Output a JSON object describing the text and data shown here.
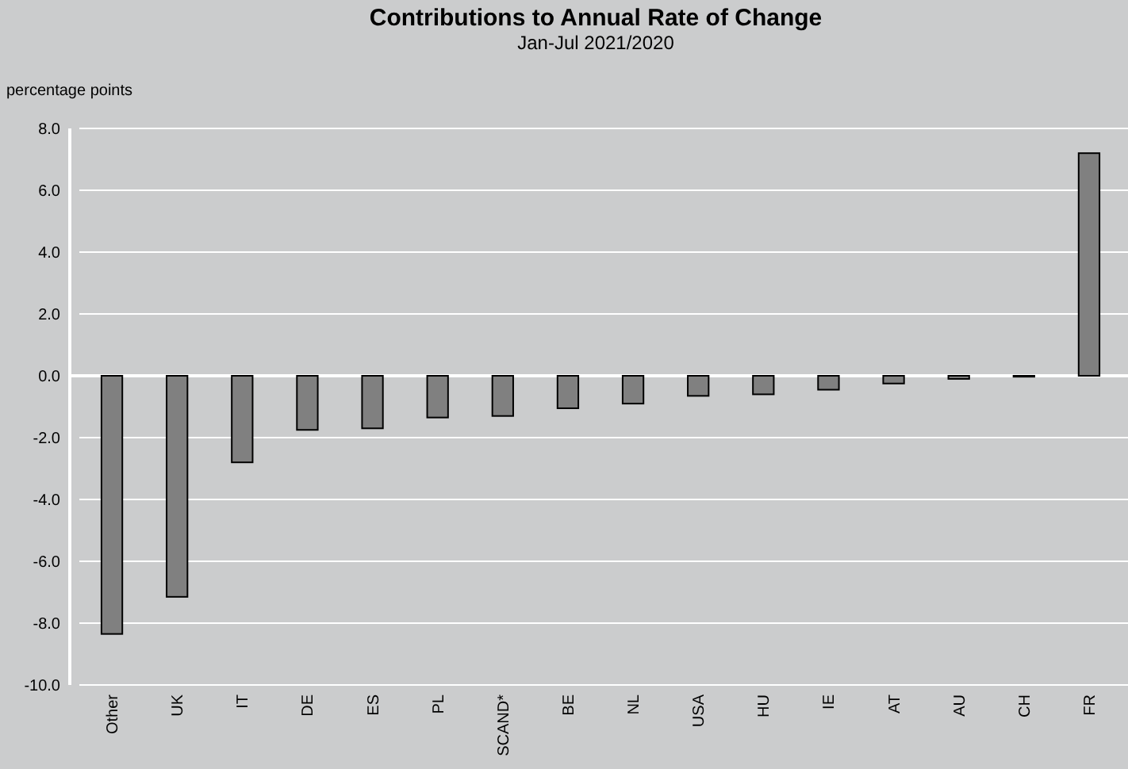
{
  "chart_data": {
    "type": "bar",
    "title": "Contributions to Annual Rate of Change",
    "subtitle": "Jan-Jul 2021/2020",
    "ylabel": "percentage points",
    "categories": [
      "Other",
      "UK",
      "IT",
      "DE",
      "ES",
      "PL",
      "SCAND*",
      "BE",
      "NL",
      "USA",
      "HU",
      "IE",
      "AT",
      "AU",
      "CH",
      "FR"
    ],
    "values": [
      -8.35,
      -7.15,
      -2.8,
      -1.75,
      -1.7,
      -1.35,
      -1.3,
      -1.05,
      -0.9,
      -0.65,
      -0.6,
      -0.45,
      -0.25,
      -0.1,
      -0.03,
      7.2
    ],
    "color": "#808080",
    "ylim": [
      -10,
      8
    ],
    "yticks": [
      {
        "value": -10,
        "label": "-10.0"
      },
      {
        "value": -8,
        "label": "-8.0"
      },
      {
        "value": -6,
        "label": "-6.0"
      },
      {
        "value": -4,
        "label": "-4.0"
      },
      {
        "value": -2,
        "label": "-2.0"
      },
      {
        "value": 0,
        "label": "0.0"
      },
      {
        "value": 2,
        "label": "2.0"
      },
      {
        "value": 4,
        "label": "4.0"
      },
      {
        "value": 6,
        "label": "6.0"
      },
      {
        "value": 8,
        "label": "8.0"
      }
    ],
    "grid": "y"
  }
}
